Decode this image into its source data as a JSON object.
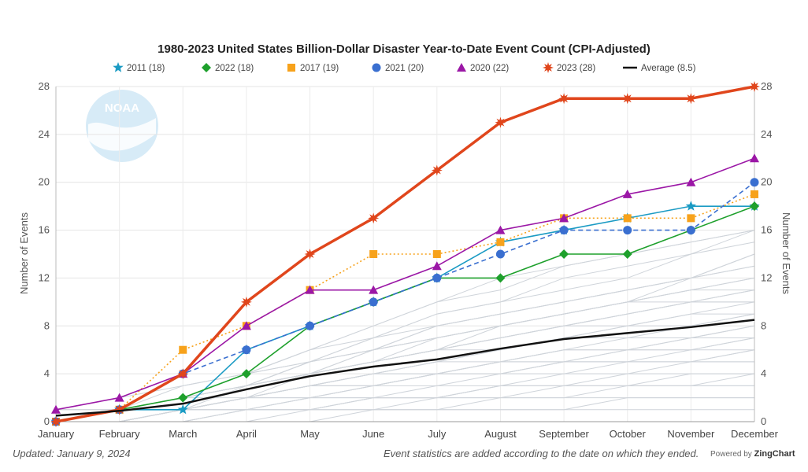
{
  "chart_data": {
    "type": "line",
    "title": "1980-2023 United States Billion-Dollar Disaster Year-to-Date Event Count (CPI-Adjusted)",
    "ylabel_left": "Number of Events",
    "ylabel_right": "Number of Events",
    "categories": [
      "January",
      "February",
      "March",
      "April",
      "May",
      "June",
      "July",
      "August",
      "September",
      "October",
      "November",
      "December"
    ],
    "ylim": [
      0,
      28
    ],
    "yticks": [
      0,
      4,
      8,
      12,
      16,
      20,
      24,
      28
    ],
    "grid": true,
    "legend_position": "top",
    "series": [
      {
        "name": "2011 (18)",
        "color": "#1b9bc4",
        "marker": "star",
        "dash": "solid",
        "width": 1.6,
        "values": [
          0,
          1,
          1,
          6,
          8,
          10,
          12,
          15,
          16,
          17,
          18,
          18
        ]
      },
      {
        "name": "2022 (18)",
        "color": "#1ea02c",
        "marker": "diamond",
        "dash": "solid",
        "width": 1.6,
        "values": [
          0,
          1,
          2,
          4,
          8,
          10,
          12,
          12,
          14,
          14,
          16,
          18
        ]
      },
      {
        "name": "2017 (19)",
        "color": "#f7a21b",
        "marker": "square",
        "dash": "dotted",
        "width": 1.6,
        "values": [
          0,
          1,
          6,
          8,
          11,
          14,
          14,
          15,
          17,
          17,
          17,
          19
        ]
      },
      {
        "name": "2021 (20)",
        "color": "#3a6fd0",
        "marker": "circle",
        "dash": "dashed",
        "width": 1.6,
        "values": [
          0,
          1,
          4,
          6,
          8,
          10,
          12,
          14,
          16,
          16,
          16,
          20
        ]
      },
      {
        "name": "2020 (22)",
        "color": "#9b17a6",
        "marker": "triangle",
        "dash": "solid",
        "width": 1.6,
        "values": [
          1,
          2,
          4,
          8,
          11,
          11,
          13,
          16,
          17,
          19,
          20,
          22
        ]
      },
      {
        "name": "2023 (28)",
        "color": "#e0461c",
        "marker": "burst",
        "dash": "solid",
        "width": 3.5,
        "values": [
          0,
          1,
          4,
          10,
          14,
          17,
          21,
          25,
          27,
          27,
          27,
          28
        ]
      },
      {
        "name": "Average (8.5)",
        "color": "#111111",
        "marker": "none",
        "dash": "solid",
        "width": 2.5,
        "values": [
          0.5,
          0.9,
          1.5,
          2.7,
          3.8,
          4.6,
          5.2,
          6.1,
          6.9,
          7.4,
          7.9,
          8.5
        ]
      }
    ],
    "background_years": [
      [
        0,
        0,
        1,
        1,
        1,
        2,
        2,
        3,
        3,
        4,
        4,
        4
      ],
      [
        0,
        0,
        0,
        1,
        1,
        1,
        2,
        2,
        2,
        3,
        3,
        3
      ],
      [
        0,
        1,
        1,
        2,
        3,
        3,
        4,
        4,
        5,
        5,
        5,
        6
      ],
      [
        0,
        0,
        1,
        1,
        2,
        2,
        3,
        3,
        4,
        4,
        5,
        5
      ],
      [
        0,
        1,
        1,
        2,
        3,
        4,
        5,
        6,
        7,
        7,
        8,
        9
      ],
      [
        0,
        0,
        1,
        2,
        2,
        3,
        4,
        5,
        5,
        6,
        6,
        7
      ],
      [
        1,
        1,
        2,
        3,
        4,
        5,
        6,
        7,
        8,
        9,
        10,
        11
      ],
      [
        0,
        1,
        2,
        3,
        4,
        6,
        7,
        8,
        9,
        10,
        11,
        12
      ],
      [
        0,
        1,
        2,
        3,
        5,
        6,
        8,
        9,
        10,
        11,
        12,
        13
      ],
      [
        0,
        0,
        1,
        2,
        4,
        5,
        6,
        8,
        9,
        10,
        11,
        12
      ],
      [
        1,
        1,
        2,
        4,
        5,
        7,
        8,
        9,
        10,
        11,
        12,
        14
      ],
      [
        0,
        1,
        2,
        3,
        5,
        7,
        9,
        10,
        11,
        12,
        14,
        15
      ],
      [
        0,
        1,
        2,
        4,
        6,
        7,
        9,
        10,
        12,
        13,
        14,
        16
      ],
      [
        1,
        2,
        3,
        4,
        6,
        8,
        10,
        11,
        13,
        14,
        15,
        16
      ],
      [
        0,
        0,
        1,
        2,
        3,
        4,
        4,
        5,
        6,
        6,
        7,
        8
      ],
      [
        0,
        1,
        1,
        2,
        3,
        3,
        4,
        5,
        5,
        6,
        6,
        7
      ],
      [
        0,
        1,
        2,
        3,
        4,
        5,
        6,
        7,
        8,
        8,
        9,
        10
      ],
      [
        0,
        1,
        2,
        2,
        3,
        4,
        5,
        6,
        7,
        8,
        9,
        9
      ],
      [
        1,
        1,
        2,
        3,
        4,
        5,
        6,
        7,
        8,
        9,
        10,
        10
      ],
      [
        0,
        0,
        1,
        2,
        3,
        3,
        4,
        4,
        5,
        5,
        6,
        6
      ],
      [
        0,
        1,
        1,
        2,
        2,
        3,
        3,
        4,
        4,
        5,
        5,
        5
      ],
      [
        0,
        0,
        1,
        1,
        2,
        2,
        2,
        3,
        3,
        3,
        4,
        4
      ],
      [
        0,
        1,
        2,
        3,
        4,
        5,
        7,
        8,
        9,
        10,
        10,
        11
      ],
      [
        0,
        1,
        2,
        3,
        4,
        6,
        7,
        8,
        9,
        10,
        11,
        11
      ],
      [
        0,
        0,
        1,
        2,
        3,
        4,
        5,
        5,
        6,
        7,
        7,
        8
      ],
      [
        0,
        1,
        1,
        2,
        3,
        4,
        4,
        5,
        6,
        6,
        7,
        7
      ],
      [
        0,
        0,
        0,
        1,
        1,
        2,
        2,
        3,
        3,
        3,
        3,
        4
      ],
      [
        0,
        0,
        1,
        1,
        1,
        2,
        2,
        2,
        3,
        3,
        3,
        3
      ],
      [
        0,
        0,
        0,
        1,
        1,
        1,
        1,
        2,
        2,
        2,
        2,
        2
      ],
      [
        0,
        0,
        0,
        0,
        1,
        1,
        1,
        1,
        1,
        2,
        2,
        2
      ],
      [
        0,
        0,
        0,
        0,
        0,
        1,
        1,
        1,
        1,
        1,
        1,
        1
      ],
      [
        0,
        1,
        2,
        4,
        5,
        6,
        7,
        8,
        9,
        10,
        12,
        13
      ],
      [
        0,
        0,
        1,
        3,
        4,
        5,
        6,
        7,
        8,
        9,
        10,
        10
      ],
      [
        0,
        1,
        2,
        3,
        5,
        6,
        8,
        9,
        10,
        11,
        12,
        14
      ],
      [
        0,
        1,
        2,
        3,
        4,
        5,
        6,
        6,
        7,
        8,
        8,
        9
      ],
      [
        0,
        0,
        1,
        1,
        2,
        3,
        4,
        4,
        5,
        5,
        5,
        6
      ],
      [
        0,
        1,
        3,
        4,
        6,
        8,
        10,
        12,
        13,
        14,
        15,
        16
      ]
    ]
  },
  "legend": [
    {
      "label": "2011 (18)"
    },
    {
      "label": "2022 (18)"
    },
    {
      "label": "2017 (19)"
    },
    {
      "label": "2021 (20)"
    },
    {
      "label": "2020 (22)"
    },
    {
      "label": "2023 (28)"
    },
    {
      "label": "Average (8.5)"
    }
  ],
  "watermark": {
    "text": "NOAA",
    "color": "#d7ebf7"
  },
  "footer": {
    "updated": "Updated: January 9, 2024",
    "note": "Event statistics are added according to the date on which they ended.",
    "powered_prefix": "Powered by",
    "powered_brand": "ZingChart"
  }
}
